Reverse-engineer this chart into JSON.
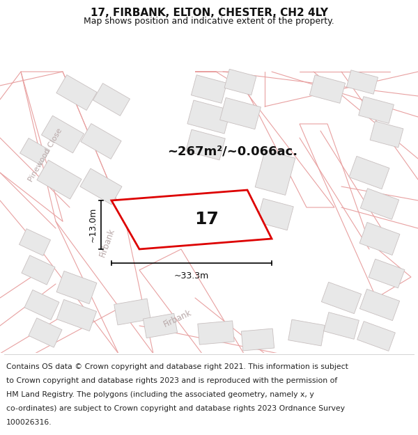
{
  "title": "17, FIRBANK, ELTON, CHESTER, CH2 4LY",
  "subtitle": "Map shows position and indicative extent of the property.",
  "area_text": "~267m²/~0.066ac.",
  "property_number": "17",
  "width_label": "~33.3m",
  "height_label": "~13.0m",
  "footer_lines": [
    "Contains OS data © Crown copyright and database right 2021. This information is subject",
    "to Crown copyright and database rights 2023 and is reproduced with the permission of",
    "HM Land Registry. The polygons (including the associated geometry, namely x, y",
    "co-ordinates) are subject to Crown copyright and database rights 2023 Ordnance Survey",
    "100026316."
  ],
  "map_bg": "#ffffff",
  "plot_outline_color": "#dd0000",
  "road_line_color": "#e8a0a0",
  "block_color": "#e8e8e8",
  "block_edge_color": "#c8c0c0",
  "title_fontsize": 11,
  "subtitle_fontsize": 9,
  "footer_fontsize": 7.8,
  "road_label_color": "#b8a8a8"
}
